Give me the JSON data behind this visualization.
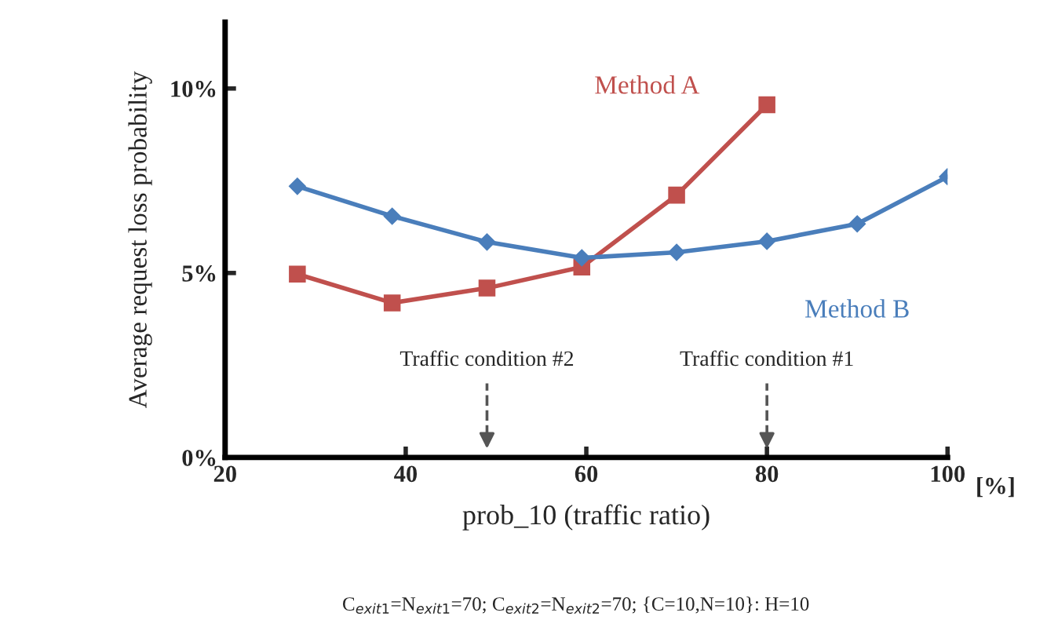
{
  "chart_data": {
    "type": "line",
    "xlabel": "prob_10 (traffic ratio)",
    "ylabel": "Average request loss probability",
    "x": [
      28,
      38.5,
      49,
      59.5,
      70,
      80,
      90,
      100
    ],
    "series": [
      {
        "name": "Method A",
        "color": "#c0504d",
        "marker": "square",
        "values": [
          4.97,
          4.19,
          4.59,
          5.16,
          7.11,
          9.56,
          null,
          null
        ]
      },
      {
        "name": "Method B",
        "color": "#4a7ebb",
        "marker": "diamond",
        "values": [
          7.35,
          6.54,
          5.84,
          5.41,
          5.56,
          5.86,
          6.33,
          7.61
        ]
      }
    ],
    "xlim": [
      20,
      100
    ],
    "xticks": [
      20,
      40,
      60,
      80,
      100
    ],
    "ylim": [
      0,
      11.8
    ],
    "yticks": [
      {
        "value": 0,
        "label": "0%"
      },
      {
        "value": 5,
        "label": "5%"
      },
      {
        "value": 10,
        "label": "10%"
      }
    ],
    "ref_lines": [
      {
        "axis": "x",
        "value": 49,
        "label": "Traffic condition #2",
        "color": "#555555",
        "line_style": "dashed"
      },
      {
        "axis": "x",
        "value": 80,
        "label": "Traffic condition #1",
        "color": "#555555",
        "line_style": "dashed"
      }
    ],
    "annotations": [
      "[%]",
      "C$_{exit1}$=N$_{exit1}$=70; C$_{exit2}$=N$_{exit2}$=70; {C=10,N=10}: H=10"
    ],
    "grid": false,
    "legend": false,
    "line_style": "solid"
  }
}
